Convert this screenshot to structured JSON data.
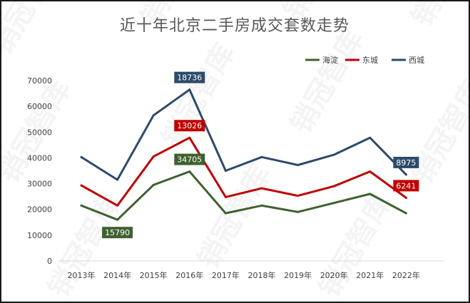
{
  "chart_data": {
    "type": "line",
    "title": "近十年北京二手房成交套数走势",
    "watermark": "销冠智库",
    "categories": [
      "2013年",
      "2014年",
      "2015年",
      "2016年",
      "2017年",
      "2018年",
      "2019年",
      "2020年",
      "2021年",
      "2022年"
    ],
    "ylim": [
      0,
      70000
    ],
    "yticks": [
      "0",
      "10000",
      "20000",
      "30000",
      "40000",
      "50000",
      "60000",
      "70000"
    ],
    "grid": false,
    "legend_position": "top-right",
    "series": [
      {
        "name": "海淀",
        "color": "#3f6130",
        "values": [
          21500,
          16000,
          29500,
          34705,
          18500,
          21500,
          19000,
          22500,
          26000,
          18500
        ],
        "labels": [
          {
            "index": 1,
            "text": "15790"
          },
          {
            "index": 3,
            "text": "34705"
          }
        ]
      },
      {
        "name": "东城",
        "color": "#c00000",
        "values": [
          29300,
          21500,
          40500,
          47800,
          24800,
          28200,
          25300,
          29000,
          34700,
          24500
        ],
        "labels": [
          {
            "index": 3,
            "text": "13026"
          },
          {
            "index": 9,
            "text": "6241"
          }
        ]
      },
      {
        "name": "西城",
        "color": "#2e4a6b",
        "values": [
          40300,
          31500,
          56500,
          66500,
          35000,
          40300,
          37200,
          41200,
          47800,
          33500
        ],
        "labels": [
          {
            "index": 3,
            "text": "18736"
          },
          {
            "index": 9,
            "text": "8975"
          }
        ]
      }
    ]
  }
}
